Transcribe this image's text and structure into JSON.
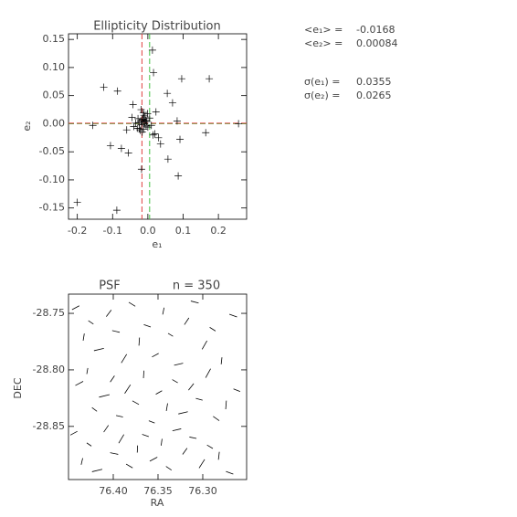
{
  "chart_data": [
    {
      "type": "scatter",
      "title": "Ellipticity Distribution",
      "x_label": "e₁",
      "y_label": "e₂",
      "color": "#000000",
      "xlim": [
        -0.225,
        0.28
      ],
      "ylim": [
        -0.17,
        0.16
      ],
      "xticks": [
        -0.2,
        -0.1,
        {
          "value": 0,
          "label": "0.0"
        },
        0.1,
        0.2
      ],
      "yticks": [
        -0.15,
        {
          "value": -0.1,
          "label": "-0.10"
        },
        -0.05,
        {
          "value": 0,
          "label": "0.00"
        },
        0.05,
        {
          "value": 0.1,
          "label": "0.10"
        },
        0.15
      ],
      "x": [
        0.013,
        0.016,
        0.096,
        0.174,
        -0.125,
        -0.086,
        0.055,
        0.07,
        -0.156,
        -0.2,
        -0.088,
        0.164,
        0.257,
        0.086,
        -0.018,
        0.057,
        -0.055,
        -0.106,
        -0.075,
        0.036,
        0.083,
        0.091,
        -0.042,
        0.023,
        -0.06,
        -0.01,
        -0.02,
        -0.005,
        -0.015,
        0.0,
        -0.025,
        -0.012,
        -0.008,
        -0.018,
        -0.003,
        -0.03,
        0.005,
        -0.022,
        -0.011,
        -0.016,
        -0.006,
        -0.028,
        0.01,
        -0.035,
        -0.013,
        0.015,
        -0.04,
        -0.019,
        -0.009,
        0.02,
        -0.045,
        0.03,
        -0.001,
        -0.024,
        -0.014
      ],
      "y": [
        0.131,
        0.091,
        0.08,
        0.08,
        0.065,
        0.058,
        0.054,
        0.037,
        -0.003,
        -0.14,
        -0.154,
        -0.016,
        0.0,
        -0.093,
        -0.081,
        -0.063,
        -0.052,
        -0.039,
        -0.044,
        -0.036,
        0.005,
        -0.028,
        0.034,
        0.021,
        -0.011,
        0.0,
        0.005,
        -0.004,
        0.008,
        -0.006,
        0.002,
        -0.01,
        0.012,
        -0.002,
        0.004,
        -0.008,
        0.01,
        -0.012,
        0.015,
        -0.015,
        0.006,
        0.009,
        -0.003,
        0.001,
        0.02,
        -0.02,
        -0.005,
        0.025,
        0.003,
        -0.018,
        0.011,
        -0.025,
        0.018,
        -0.009,
        0.007
      ],
      "mean_color": "#e04040",
      "reference_color": "#40c040",
      "reference": [
        0.005,
        0
      ],
      "stats": [
        {
          "label": "<e₁> =",
          "value": -0.0168
        },
        {
          "label": "<e₂> =",
          "value": 0.00084
        },
        {
          "label": "σ(e₁) =",
          "value": 0.0355
        },
        {
          "label": "σ(e₂) =",
          "value": 0.0265
        }
      ]
    },
    {
      "type": "whisker",
      "title": "PSF",
      "subtitle": "n = 350",
      "x_label": "RA",
      "y_label": "DEC",
      "color": "#000000",
      "xlim": [
        76.45,
        76.251
      ],
      "ylim": [
        -28.897,
        -28.733
      ],
      "xticks": [
        {
          "value": 76.4,
          "label": "76.40"
        },
        76.35,
        {
          "value": 76.3,
          "label": "76.30"
        }
      ],
      "yticks": [
        -28.75,
        {
          "value": -28.8,
          "label": "-28.80"
        },
        -28.85
      ],
      "x": [
        76.442,
        76.433,
        76.425,
        76.416,
        76.405,
        76.397,
        76.388,
        76.379,
        76.371,
        76.362,
        76.353,
        76.344,
        76.336,
        76.327,
        76.318,
        76.309,
        76.298,
        76.289,
        76.279,
        76.266,
        76.438,
        76.429,
        76.421,
        76.41,
        76.401,
        76.393,
        76.384,
        76.375,
        76.366,
        76.357,
        76.349,
        76.34,
        76.331,
        76.322,
        76.313,
        76.304,
        76.294,
        76.285,
        76.274,
        76.262,
        76.444,
        76.435,
        76.427,
        76.418,
        76.408,
        76.399,
        76.391,
        76.382,
        76.373,
        76.364,
        76.355,
        76.346,
        76.338,
        76.329,
        76.32,
        76.311,
        76.301,
        76.292,
        76.282,
        76.27
      ],
      "y": [
        -28.745,
        -28.771,
        -28.758,
        -28.782,
        -28.75,
        -28.766,
        -28.79,
        -28.742,
        -28.775,
        -28.761,
        -28.787,
        -28.748,
        -28.769,
        -28.795,
        -28.757,
        -28.74,
        -28.778,
        -28.764,
        -28.792,
        -28.752,
        -28.812,
        -28.801,
        -28.835,
        -28.823,
        -28.808,
        -28.841,
        -28.817,
        -28.829,
        -28.804,
        -28.846,
        -28.82,
        -28.833,
        -28.81,
        -28.838,
        -28.815,
        -28.826,
        -28.803,
        -28.843,
        -28.831,
        -28.818,
        -28.856,
        -28.881,
        -28.866,
        -28.889,
        -28.852,
        -28.874,
        -28.861,
        -28.885,
        -28.87,
        -28.858,
        -28.879,
        -28.864,
        -28.887,
        -28.853,
        -28.872,
        -28.86,
        -28.883,
        -28.868,
        -28.876,
        -28.891
      ],
      "e1": [
        0.02,
        -0.03,
        0.01,
        0.04,
        -0.01,
        0.03,
        -0.02,
        0.015,
        -0.035,
        0.025,
        0.018,
        -0.028,
        0.012,
        0.036,
        -0.014,
        0.031,
        -0.022,
        0.013,
        -0.03,
        0.027,
        0.022,
        -0.025,
        0.008,
        0.042,
        -0.012,
        0.028,
        -0.018,
        0.017,
        -0.033,
        0.021,
        0.016,
        -0.032,
        0.014,
        0.038,
        -0.009,
        0.026,
        -0.024,
        0.011,
        -0.037,
        0.023,
        0.019,
        -0.027,
        0.009,
        0.041,
        -0.013,
        0.033,
        -0.021,
        0.016,
        -0.031,
        0.024,
        0.021,
        -0.029,
        0.011,
        0.035,
        -0.011,
        0.029,
        -0.019,
        0.014,
        -0.034,
        0.026
      ],
      "e2": [
        0.03,
        0.01,
        -0.025,
        0.02,
        0.035,
        -0.015,
        0.04,
        -0.03,
        0.005,
        -0.02,
        0.028,
        0.012,
        -0.022,
        0.018,
        0.033,
        -0.017,
        0.037,
        -0.027,
        0.007,
        -0.023,
        0.032,
        0.009,
        -0.026,
        0.022,
        0.031,
        -0.013,
        0.042,
        -0.028,
        0.004,
        -0.018,
        0.027,
        0.011,
        -0.024,
        0.019,
        0.036,
        -0.016,
        0.038,
        -0.031,
        0.006,
        -0.021,
        0.029,
        0.013,
        -0.023,
        0.021,
        0.034,
        -0.014,
        0.039,
        -0.029,
        0.003,
        -0.019,
        0.031,
        0.008,
        -0.027,
        0.017,
        0.032,
        -0.012,
        0.041,
        -0.026,
        0.008,
        -0.022
      ]
    }
  ]
}
